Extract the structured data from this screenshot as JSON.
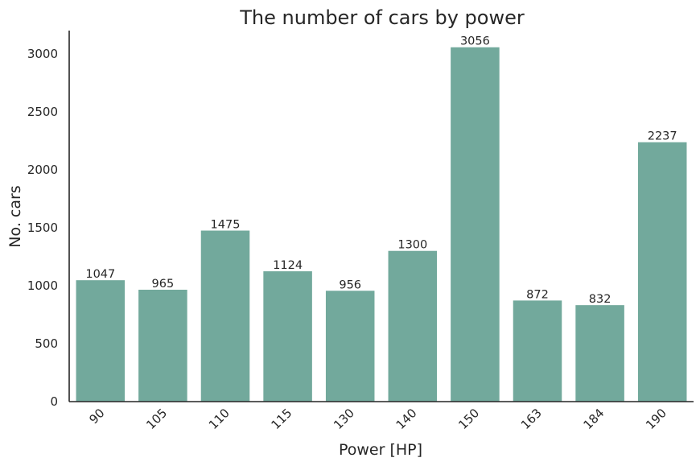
{
  "chart_data": {
    "type": "bar",
    "title": "The number of cars by power",
    "xlabel": "Power [HP]",
    "ylabel": "No. cars",
    "categories": [
      "90",
      "105",
      "110",
      "115",
      "130",
      "140",
      "150",
      "163",
      "184",
      "190"
    ],
    "values": [
      1047,
      965,
      1475,
      1124,
      956,
      1300,
      3056,
      872,
      832,
      2237
    ],
    "ylim": [
      0,
      3200
    ],
    "yticks": [
      0,
      500,
      1000,
      1500,
      2000,
      2500,
      3000
    ],
    "grid": false,
    "bar_color": "#72a99c",
    "axis_color": "#262626"
  }
}
